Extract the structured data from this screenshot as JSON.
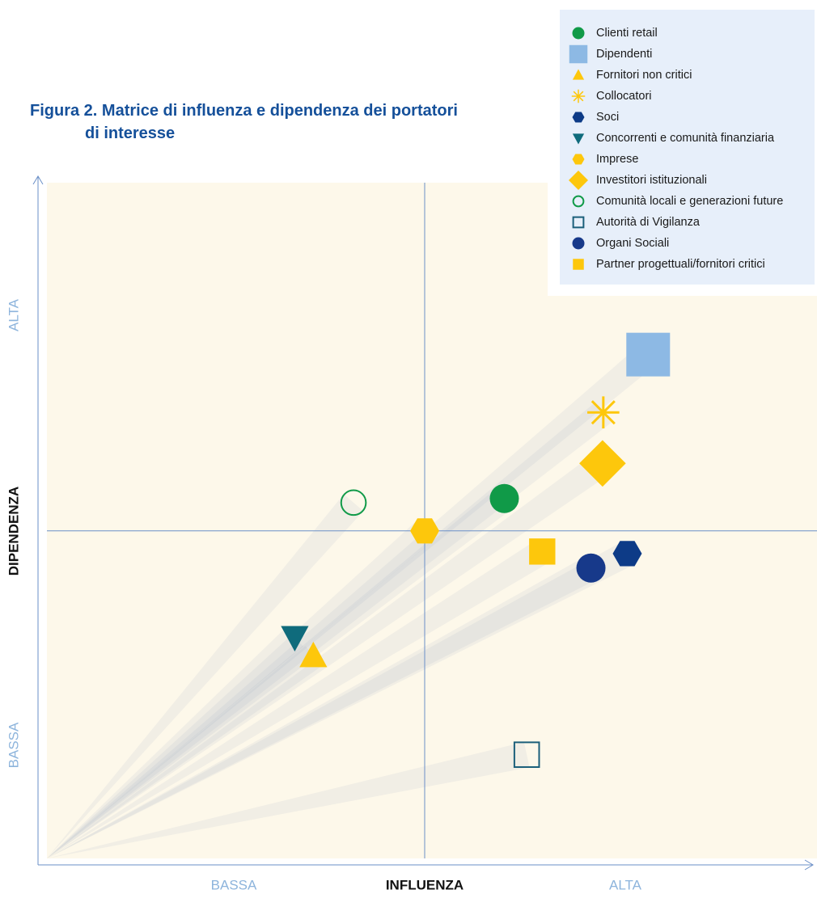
{
  "chart_data": {
    "type": "scatter",
    "title": "Figura 2. Matrice di influenza e dipendenza dei portatori di interesse",
    "x_label": "INFLUENZA",
    "y_label": "DIPENDENZA",
    "x_low_label": "BASSA",
    "x_high_label": "ALTA",
    "y_low_label": "BASSA",
    "y_high_label": "ALTA",
    "xlim": [
      0,
      10
    ],
    "ylim": [
      0,
      10
    ],
    "quadrant_lines": {
      "x": 5,
      "y": 4.85
    },
    "legend": "top-right",
    "series": [
      {
        "name": "Clienti retail",
        "color": "#109a48",
        "marker": "circle",
        "x": 6.03,
        "y": 5.32
      },
      {
        "name": "Dipendenti",
        "color": "#8db9e4",
        "marker": "square-large",
        "x": 7.89,
        "y": 7.41
      },
      {
        "name": "Fornitori non critici",
        "color": "#fdc70c",
        "marker": "triangle",
        "x": 3.56,
        "y": 3.03
      },
      {
        "name": "Collocatori",
        "color": "#fdc70c",
        "marker": "asterisk",
        "x": 7.31,
        "y": 6.57
      },
      {
        "name": "Soci",
        "color": "#0d3b87",
        "marker": "hexagon",
        "x": 7.62,
        "y": 4.52
      },
      {
        "name": "Concorrenti e comunità finanziaria",
        "color": "#0f6b7c",
        "marker": "triangle-down",
        "x": 3.32,
        "y": 3.31
      },
      {
        "name": "Imprese",
        "color": "#fdc70c",
        "marker": "hexagon",
        "x": 5.0,
        "y": 4.85
      },
      {
        "name": "Investitori istituzionali",
        "color": "#fdc70c",
        "marker": "diamond",
        "x": 7.3,
        "y": 5.83
      },
      {
        "name": "Comunità locali e generazioni future",
        "color": "#109a48",
        "marker": "circle-open",
        "x": 4.08,
        "y": 5.26
      },
      {
        "name": "Autorità di Vigilanza",
        "color": "#1b5f7a",
        "marker": "square-open",
        "x": 6.32,
        "y": 1.6
      },
      {
        "name": "Organi Sociali",
        "color": "#17398a",
        "marker": "circle",
        "x": 7.15,
        "y": 4.31
      },
      {
        "name": "Partner progettuali/fornitori critici",
        "color": "#fdc70c",
        "marker": "square",
        "x": 6.52,
        "y": 4.55
      }
    ]
  }
}
